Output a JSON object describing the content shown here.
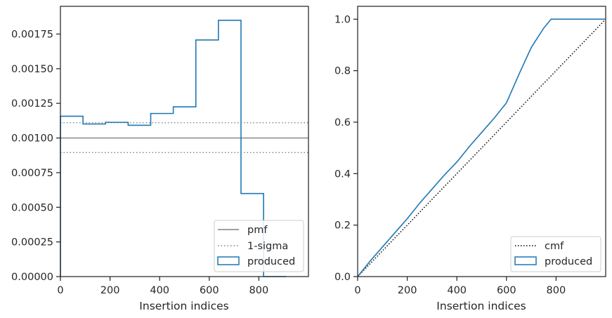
{
  "colors": {
    "produced": "#1f77b4",
    "pmf": "#808080",
    "sigma": "#808080",
    "cmf": "#000000",
    "axes": "#262626"
  },
  "chart_data": [
    {
      "type": "step",
      "xlabel": "Insertion indices",
      "ylabel": "",
      "xlim": [
        0,
        1000
      ],
      "ylim": [
        0,
        0.00195
      ],
      "xticks": [
        0,
        200,
        400,
        600,
        800
      ],
      "xtick_labels": [
        "0",
        "200",
        "400",
        "600",
        "800"
      ],
      "yticks": [
        0,
        0.00025,
        0.0005,
        0.00075,
        0.001,
        0.00125,
        0.0015,
        0.00175
      ],
      "ytick_labels": [
        "0.00000",
        "0.00025",
        "0.00050",
        "0.00075",
        "0.00100",
        "0.00125",
        "0.00150",
        "0.00175"
      ],
      "hlines": [
        {
          "name": "pmf",
          "y": 0.001,
          "style": "solid"
        },
        {
          "name": "1-sigma",
          "y": 0.00111,
          "style": "dotted"
        },
        {
          "name": "1-sigma",
          "y": 0.000895,
          "style": "dotted"
        }
      ],
      "histogram": {
        "name": "produced",
        "bin_edges": [
          0,
          91,
          182,
          273,
          364,
          455,
          546,
          637,
          728,
          819,
          910
        ],
        "values": [
          0.001157,
          0.001101,
          0.001113,
          0.001092,
          0.001177,
          0.001225,
          0.001707,
          0.001849,
          0.000599,
          0.0,
          0.0
        ]
      },
      "legend": {
        "position": "lower right",
        "entries": [
          {
            "label": "pmf",
            "kind": "line"
          },
          {
            "label": "1-sigma",
            "kind": "dotted"
          },
          {
            "label": "produced",
            "kind": "patch"
          }
        ]
      }
    },
    {
      "type": "line",
      "xlabel": "Insertion indices",
      "ylabel": "",
      "xlim": [
        0,
        1000
      ],
      "ylim": [
        0,
        1.05
      ],
      "xticks": [
        0,
        200,
        400,
        600,
        800
      ],
      "xtick_labels": [
        "0",
        "200",
        "400",
        "600",
        "800"
      ],
      "yticks": [
        0,
        0.2,
        0.4,
        0.6,
        0.8,
        1.0
      ],
      "ytick_labels": [
        "0.0",
        "0.2",
        "0.4",
        "0.6",
        "0.8",
        "1.0"
      ],
      "series": [
        {
          "name": "cmf",
          "style": "dotted",
          "x": [
            0,
            1000
          ],
          "y": [
            0,
            1.0
          ]
        },
        {
          "name": "produced",
          "style": "step",
          "x": [
            0,
            50,
            100,
            150,
            200,
            250,
            300,
            350,
            400,
            450,
            500,
            550,
            600,
            650,
            700,
            750,
            780,
            1000
          ],
          "y": [
            0,
            0.06,
            0.115,
            0.17,
            0.225,
            0.285,
            0.34,
            0.395,
            0.445,
            0.505,
            0.56,
            0.615,
            0.675,
            0.785,
            0.89,
            0.965,
            1.0,
            1.0
          ]
        }
      ],
      "legend": {
        "position": "lower right",
        "entries": [
          {
            "label": "cmf",
            "kind": "dotted"
          },
          {
            "label": "produced",
            "kind": "patch"
          }
        ]
      }
    }
  ]
}
